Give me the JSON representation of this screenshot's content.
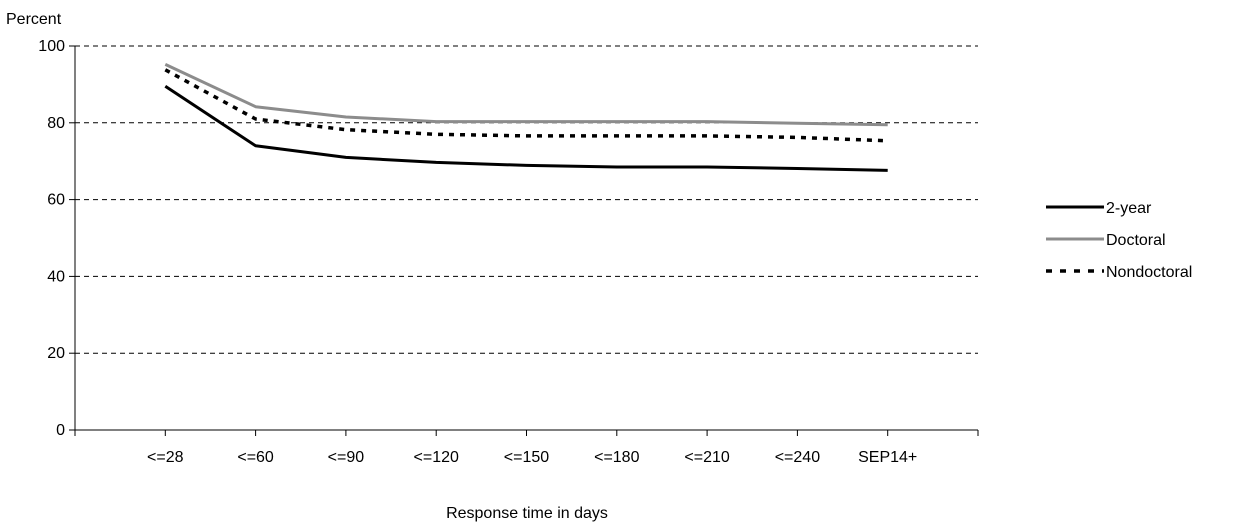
{
  "chart_data": {
    "type": "line",
    "title": "",
    "ylabel": "Percent",
    "xlabel": "Response time in days",
    "categories": [
      "<=28",
      "<=60",
      "<=90",
      "<=120",
      "<=150",
      "<=180",
      "<=210",
      "<=240",
      "SEP14+"
    ],
    "ylim": [
      0,
      100
    ],
    "yticks": [
      0,
      20,
      40,
      60,
      80,
      100
    ],
    "grid": true,
    "legend_position": "right",
    "series": [
      {
        "name": "2-year",
        "style": "solid",
        "color": "#000000",
        "values": [
          89.5,
          74,
          71,
          69.7,
          68.9,
          68.5,
          68.5,
          68.1,
          67.6
        ]
      },
      {
        "name": "Doctoral",
        "style": "solid",
        "color": "#8c8c8c",
        "values": [
          95.2,
          84.2,
          81.5,
          80.3,
          80.3,
          80.3,
          80.3,
          79.9,
          79.5
        ]
      },
      {
        "name": "Nondoctoral",
        "style": "dotted",
        "color": "#000000",
        "values": [
          93.8,
          81,
          78.2,
          77,
          76.6,
          76.6,
          76.6,
          76.2,
          75.3
        ]
      }
    ]
  }
}
